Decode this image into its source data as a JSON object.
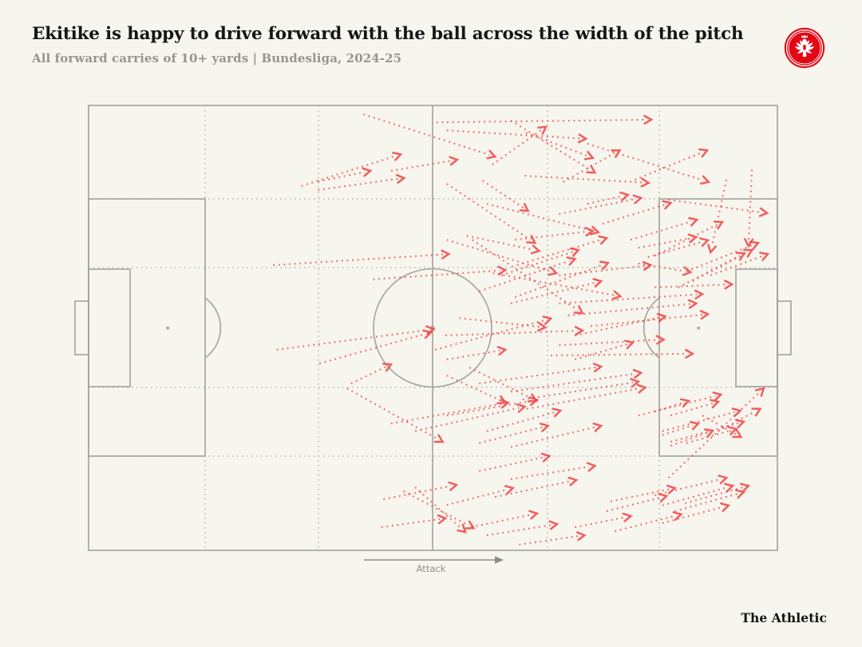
{
  "header": {
    "title": "Ekitike is happy to drive forward with the ball across the width of the pitch",
    "subtitle": "All forward carries of 10+ yards | Bundesliga, 2024-25",
    "badge": "Eintracht Frankfurt crest"
  },
  "pitch": {
    "attack_label": "Attack"
  },
  "footer": {
    "brand": "The Athletic"
  },
  "colors": {
    "background": "#f6f5ee",
    "carry_red": "#f14e4e",
    "pitch_line": "#a3a29c",
    "grid_dot": "#adaca4",
    "badge_red": "#e30613",
    "title_text": "#161616",
    "subtitle_text": "#97958c",
    "attack_text": "#8f8e86"
  },
  "chart_data": {
    "type": "scatter",
    "subtype": "pitch-carry-map",
    "title": "Ekitike is happy to drive forward with the ball across the width of the pitch",
    "subtitle": "All forward carries of 10+ yards | Bundesliga, 2024-25",
    "annotation": "Attack (play moves left to right)",
    "coordinate_system": "percent of pitch: x 0 = own goal line (left) to 100 = attacking goal line (right); y 0 = top touchline to 100 = bottom touchline; each point is [x_start, y_start, x_end, y_end]",
    "series": [
      {
        "name": "Forward carries of 10+ yards",
        "mark": "dotted-line-with-arrowhead",
        "points": [
          [
            30.9,
            18.1,
            45.3,
            11.0
          ],
          [
            33.3,
            17.1,
            40.9,
            14.7
          ],
          [
            33.3,
            19.0,
            45.8,
            16.3
          ],
          [
            43.9,
            14.7,
            53.5,
            12.2
          ],
          [
            58.6,
            13.3,
            66.4,
            4.8
          ],
          [
            50.5,
            3.8,
            81.7,
            3.2
          ],
          [
            52.0,
            5.6,
            72.2,
            7.5
          ],
          [
            39.9,
            2.0,
            59.0,
            11.5
          ],
          [
            63.5,
            6.1,
            73.2,
            11.8
          ],
          [
            61.3,
            3.4,
            73.5,
            15.1
          ],
          [
            68.9,
            17.2,
            77.1,
            10.1
          ],
          [
            79.3,
            16.7,
            89.8,
            10.1
          ],
          [
            72.4,
            8.6,
            90.0,
            17.2
          ],
          [
            63.3,
            15.8,
            81.3,
            17.4
          ],
          [
            57.2,
            16.9,
            63.8,
            23.7
          ],
          [
            52.0,
            17.6,
            64.8,
            30.9
          ],
          [
            57.8,
            22.1,
            74.0,
            28.5
          ],
          [
            54.9,
            29.3,
            65.4,
            32.7
          ],
          [
            61.9,
            30.2,
            73.2,
            28.2
          ],
          [
            62.2,
            35.9,
            75.2,
            29.8
          ],
          [
            59.9,
            38.2,
            71.1,
            32.5
          ],
          [
            56.7,
            41.8,
            70.6,
            34.5
          ],
          [
            61.9,
            43.1,
            75.4,
            35.4
          ],
          [
            68.3,
            38.2,
            81.6,
            35.9
          ],
          [
            72.4,
            22.1,
            78.3,
            20.1
          ],
          [
            68.3,
            24.4,
            80.2,
            20.8
          ],
          [
            74.6,
            26.6,
            84.5,
            21.9
          ],
          [
            78.7,
            30.2,
            88.3,
            25.7
          ],
          [
            82.2,
            33.8,
            92.0,
            26.2
          ],
          [
            84.2,
            21.2,
            98.5,
            24.2
          ],
          [
            79.8,
            32.0,
            88.2,
            29.6
          ],
          [
            81.2,
            34.1,
            89.9,
            30.3
          ],
          [
            86.8,
            37.3,
            97.2,
            30.9
          ],
          [
            87.7,
            39.5,
            96.3,
            32.5
          ],
          [
            85.6,
            40.9,
            95.2,
            33.2
          ],
          [
            90.3,
            38.2,
            98.6,
            33.4
          ],
          [
            92.6,
            16.7,
            90.3,
            33.0
          ],
          [
            96.3,
            14.4,
            95.8,
            31.6
          ],
          [
            26.8,
            35.9,
            52.3,
            33.4
          ],
          [
            52.0,
            30.2,
            67.9,
            37.7
          ],
          [
            41.3,
            39.1,
            60.5,
            37.0
          ],
          [
            27.3,
            54.9,
            50.1,
            50.3
          ],
          [
            33.5,
            58.0,
            49.7,
            51.0
          ],
          [
            38.1,
            62.5,
            43.9,
            58.2
          ],
          [
            61.3,
            44.5,
            74.4,
            39.5
          ],
          [
            53.8,
            47.8,
            66.3,
            49.9
          ],
          [
            51.8,
            51.7,
            71.7,
            50.6
          ],
          [
            50.3,
            54.9,
            67.1,
            47.9
          ],
          [
            55.7,
            30.2,
            71.7,
            46.7
          ],
          [
            58.7,
            37.7,
            77.2,
            42.9
          ],
          [
            68.3,
            44.5,
            89.1,
            42.4
          ],
          [
            69.6,
            47.2,
            88.2,
            44.5
          ],
          [
            72.9,
            49.6,
            89.9,
            46.9
          ],
          [
            70.6,
            51.7,
            83.7,
            47.4
          ],
          [
            68.3,
            53.9,
            83.5,
            52.6
          ],
          [
            67.1,
            56.2,
            87.7,
            55.8
          ],
          [
            70.6,
            57.1,
            79.0,
            53.3
          ],
          [
            82.2,
            40.9,
            93.4,
            40.2
          ],
          [
            79.8,
            35.5,
            87.4,
            37.5
          ],
          [
            52.0,
            57.1,
            60.5,
            54.9
          ],
          [
            56.7,
            62.5,
            74.4,
            58.7
          ],
          [
            61.3,
            64.3,
            80.2,
            60.1
          ],
          [
            63.0,
            66.1,
            79.8,
            62.1
          ],
          [
            63.6,
            68.2,
            80.8,
            63.4
          ],
          [
            55.3,
            58.9,
            65.0,
            66.4
          ],
          [
            52.0,
            60.7,
            60.5,
            66.8
          ],
          [
            37.5,
            63.6,
            51.4,
            75.6
          ],
          [
            43.9,
            71.5,
            60.9,
            66.8
          ],
          [
            47.4,
            73.2,
            63.3,
            67.7
          ],
          [
            52.0,
            69.7,
            65.1,
            66.2
          ],
          [
            57.8,
            73.2,
            68.5,
            68.6
          ],
          [
            56.7,
            75.9,
            66.7,
            72.0
          ],
          [
            61.3,
            76.8,
            74.4,
            72.0
          ],
          [
            56.7,
            82.2,
            66.9,
            78.8
          ],
          [
            61.3,
            84.0,
            73.5,
            81.0
          ],
          [
            59.0,
            88.0,
            70.8,
            84.2
          ],
          [
            42.8,
            88.5,
            53.4,
            85.3
          ],
          [
            52.0,
            89.8,
            61.6,
            86.0
          ],
          [
            55.5,
            94.8,
            65.1,
            91.7
          ],
          [
            57.8,
            96.6,
            68.0,
            94.1
          ],
          [
            42.5,
            94.8,
            51.8,
            92.8
          ],
          [
            47.4,
            85.8,
            54.7,
            95.9
          ],
          [
            45.7,
            86.7,
            55.9,
            95.0
          ],
          [
            62.5,
            98.7,
            72.0,
            96.6
          ],
          [
            84.2,
            83.7,
            98.0,
            63.6
          ],
          [
            79.8,
            69.7,
            91.8,
            65.0
          ],
          [
            83.3,
            73.2,
            94.6,
            68.6
          ],
          [
            84.5,
            75.6,
            95.1,
            71.1
          ],
          [
            82.2,
            87.6,
            92.6,
            83.7
          ],
          [
            83.3,
            89.9,
            93.5,
            85.5
          ],
          [
            86.6,
            89.4,
            95.8,
            85.5
          ],
          [
            85.1,
            91.2,
            95.1,
            86.9
          ],
          [
            83.3,
            93.9,
            92.9,
            89.9
          ],
          [
            70.6,
            94.8,
            78.7,
            92.3
          ],
          [
            76.4,
            95.7,
            86.0,
            91.9
          ],
          [
            75.2,
            91.2,
            83.9,
            87.8
          ],
          [
            75.8,
            89.0,
            85.1,
            86.0
          ],
          [
            82.2,
            68.8,
            87.1,
            66.4
          ],
          [
            84.5,
            69.7,
            91.4,
            66.6
          ],
          [
            91.4,
            73.2,
            97.5,
            68.2
          ],
          [
            83.3,
            74.1,
            88.5,
            71.5
          ],
          [
            84.5,
            76.5,
            90.6,
            73.1
          ],
          [
            86.8,
            75.9,
            94.0,
            72.7
          ],
          [
            89.1,
            69.7,
            94.7,
            74.5
          ]
        ]
      }
    ]
  }
}
